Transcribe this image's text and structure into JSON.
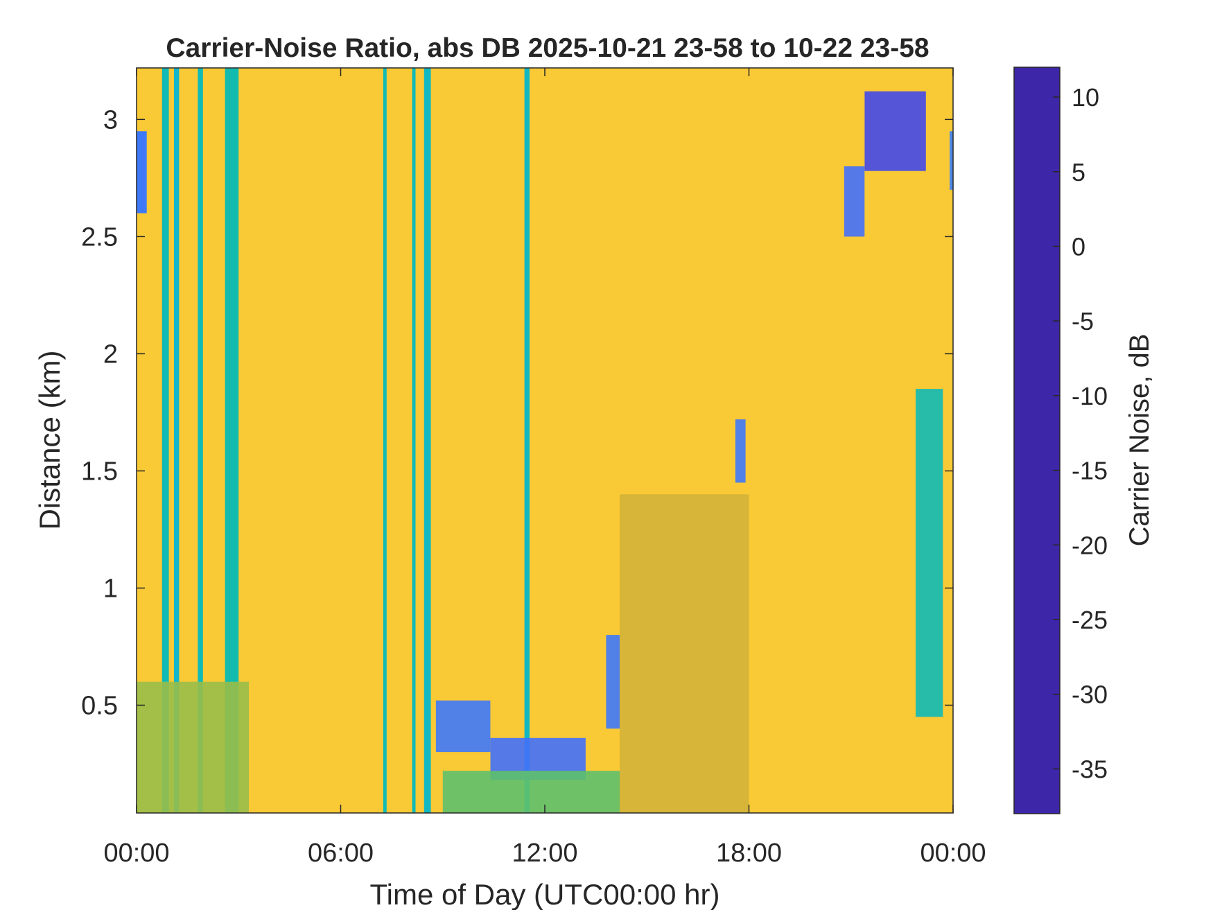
{
  "chart_data": {
    "type": "heatmap",
    "title": "Carrier-Noise Ratio, abs DB 2025-10-21 23-58 to 10-22 23-58",
    "xlabel": "Time of Day (UTC00:00 hr)",
    "ylabel": "Distance (km)",
    "colorbar_label": "Carrier Noise, dB",
    "x_ticks": [
      "00:00",
      "06:00",
      "12:00",
      "18:00",
      "00:00"
    ],
    "x_range_hours": [
      0,
      24
    ],
    "y_ticks": [
      "0.5",
      "1",
      "1.5",
      "2",
      "2.5",
      "3"
    ],
    "y_tick_values": [
      0.5,
      1,
      1.5,
      2,
      2.5,
      3
    ],
    "y_range": [
      0.04,
      3.22
    ],
    "colorbar_ticks": [
      "10",
      "5",
      "0",
      "-5",
      "-10",
      "-15",
      "-20",
      "-25",
      "-30",
      "-35"
    ],
    "colorbar_tick_values": [
      10,
      5,
      0,
      -5,
      -10,
      -15,
      -20,
      -25,
      -30,
      -35
    ],
    "color_range": [
      -38,
      12
    ],
    "colormap": "parula",
    "colormap_stops": [
      "#3e26a8",
      "#4435e0",
      "#4271fb",
      "#2d97f2",
      "#13b2dc",
      "#0fbbb0",
      "#3bc07f",
      "#96bf4a",
      "#d6b236",
      "#fcbe3d",
      "#f6d52d",
      "#f9fa14"
    ],
    "background_value": -31,
    "grid": false,
    "legend": "colorbar-right",
    "features": [
      {
        "kind": "column",
        "t_start": 0.75,
        "t_end": 0.95,
        "d_top": 3.22,
        "d_bottom": 0.04,
        "value": -10
      },
      {
        "kind": "column",
        "t_start": 1.1,
        "t_end": 1.25,
        "d_top": 3.22,
        "d_bottom": 0.04,
        "value": -8
      },
      {
        "kind": "column",
        "t_start": 1.8,
        "t_end": 1.95,
        "d_top": 3.22,
        "d_bottom": 0.04,
        "value": -10
      },
      {
        "kind": "column",
        "t_start": 2.6,
        "t_end": 3.0,
        "d_top": 3.22,
        "d_bottom": 0.04,
        "value": -11
      },
      {
        "kind": "column",
        "t_start": 7.25,
        "t_end": 7.35,
        "d_top": 3.22,
        "d_bottom": 0.04,
        "value": -10
      },
      {
        "kind": "column",
        "t_start": 8.1,
        "t_end": 8.2,
        "d_top": 3.22,
        "d_bottom": 0.04,
        "value": -10
      },
      {
        "kind": "column",
        "t_start": 8.45,
        "t_end": 8.65,
        "d_top": 3.22,
        "d_bottom": 0.04,
        "value": -9
      },
      {
        "kind": "column",
        "t_start": 11.4,
        "t_end": 11.55,
        "d_top": 3.22,
        "d_bottom": 0.04,
        "value": -9
      },
      {
        "kind": "column",
        "t_start": 0.0,
        "t_end": 0.3,
        "d_top": 2.95,
        "d_bottom": 2.6,
        "value": 2
      },
      {
        "kind": "patch",
        "t_start": 0.0,
        "t_end": 3.3,
        "d_top": 0.6,
        "d_bottom": 0.04,
        "value": -20
      },
      {
        "kind": "patch",
        "t_start": 8.8,
        "t_end": 10.4,
        "d_top": 0.52,
        "d_bottom": 0.3,
        "value": 2
      },
      {
        "kind": "patch",
        "t_start": 10.4,
        "t_end": 13.2,
        "d_top": 0.36,
        "d_bottom": 0.18,
        "value": 3
      },
      {
        "kind": "patch",
        "t_start": 9.0,
        "t_end": 14.2,
        "d_top": 0.22,
        "d_bottom": 0.04,
        "value": -17
      },
      {
        "kind": "patch",
        "t_start": 14.2,
        "t_end": 18.0,
        "d_top": 1.4,
        "d_bottom": 0.04,
        "value": -24
      },
      {
        "kind": "patch",
        "t_start": 13.8,
        "t_end": 14.2,
        "d_top": 0.8,
        "d_bottom": 0.4,
        "value": 2
      },
      {
        "kind": "patch",
        "t_start": 17.6,
        "t_end": 17.9,
        "d_top": 1.72,
        "d_bottom": 1.45,
        "value": 2
      },
      {
        "kind": "patch",
        "t_start": 20.8,
        "t_end": 21.4,
        "d_top": 2.8,
        "d_bottom": 2.5,
        "value": 3
      },
      {
        "kind": "patch",
        "t_start": 21.4,
        "t_end": 23.2,
        "d_top": 3.12,
        "d_bottom": 2.78,
        "value": 6
      },
      {
        "kind": "patch",
        "t_start": 23.9,
        "t_end": 24.0,
        "d_top": 2.95,
        "d_bottom": 2.7,
        "value": 1
      },
      {
        "kind": "patch",
        "t_start": 22.9,
        "t_end": 23.7,
        "d_top": 1.85,
        "d_bottom": 0.45,
        "value": -10
      }
    ]
  }
}
